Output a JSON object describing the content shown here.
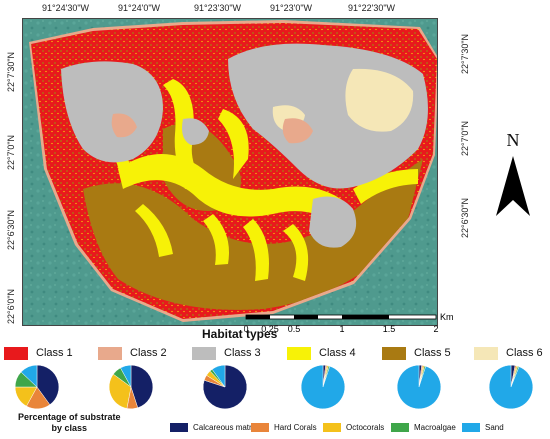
{
  "coords": {
    "top": [
      "91°24'30\"W",
      "91°24'0\"W",
      "91°23'30\"W",
      "91°23'0\"W",
      "91°22'30\"W"
    ],
    "left": [
      "22°7'30\"N",
      "22°7'0\"N",
      "22°6'30\"N",
      "22°6'0\"N"
    ],
    "right": [
      "22°7'30\"N",
      "22°7'0\"N",
      "22°6'30\"N"
    ]
  },
  "north_label": "N",
  "scale": {
    "ticks": [
      "0",
      "0.25",
      "0.5",
      "1",
      "1.5",
      "2"
    ],
    "unit": "Km"
  },
  "legend": {
    "title": "Habitat types",
    "classes": [
      {
        "label": "Class 1",
        "color": "#e8191c"
      },
      {
        "label": "Class 2",
        "color": "#e8a98c"
      },
      {
        "label": "Class 3",
        "color": "#bdbdbd"
      },
      {
        "label": "Class 4",
        "color": "#f7f207"
      },
      {
        "label": "Class 5",
        "color": "#a97a12"
      },
      {
        "label": "Class 6",
        "color": "#f5e7b7"
      }
    ]
  },
  "substrate": {
    "title_line1": "Percentage of substrate",
    "title_line2": "by class",
    "categories": [
      {
        "label": "Calcareous matrix",
        "color": "#142066"
      },
      {
        "label": "Hard Corals",
        "color": "#e9853a"
      },
      {
        "label": "Octocorals",
        "color": "#f4c11b"
      },
      {
        "label": "Macroalgae",
        "color": "#3fa64a"
      },
      {
        "label": "Sand",
        "color": "#21a8e8"
      }
    ],
    "pies": [
      {
        "class": "Class 1",
        "values": [
          40,
          18,
          17,
          12,
          13
        ]
      },
      {
        "class": "Class 2",
        "values": [
          45,
          8,
          32,
          7,
          8
        ]
      },
      {
        "class": "Class 3",
        "values": [
          80,
          4,
          4,
          2,
          10
        ]
      },
      {
        "class": "Class 4",
        "values": [
          2,
          1,
          1,
          1,
          95
        ]
      },
      {
        "class": "Class 5",
        "values": [
          2,
          1,
          1,
          1,
          95
        ]
      },
      {
        "class": "Class 6",
        "values": [
          3,
          1,
          1,
          1,
          94
        ]
      }
    ]
  }
}
